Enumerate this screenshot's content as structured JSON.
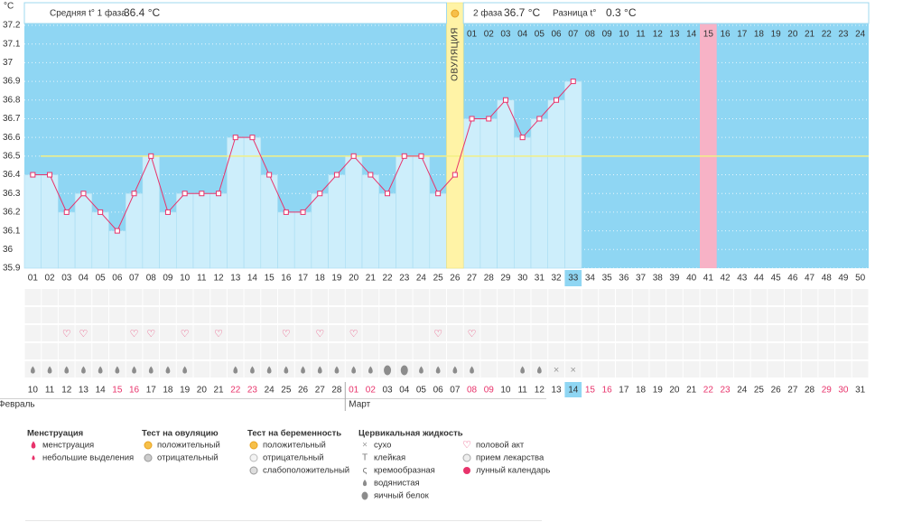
{
  "chart_data": {
    "type": "line",
    "ylabel": "°C",
    "categories": [
      "01",
      "02",
      "03",
      "04",
      "05",
      "06",
      "07",
      "08",
      "09",
      "10",
      "11",
      "12",
      "13",
      "14",
      "15",
      "16",
      "17",
      "18",
      "19",
      "20",
      "21",
      "22",
      "23",
      "24",
      "25",
      "26",
      "27",
      "28",
      "29",
      "30",
      "31",
      "32",
      "33",
      "34",
      "35",
      "36",
      "37",
      "38",
      "39",
      "40",
      "41",
      "42",
      "43",
      "44",
      "45",
      "46",
      "47",
      "48",
      "49",
      "50"
    ],
    "values": [
      36.4,
      36.4,
      36.2,
      36.3,
      36.2,
      36.1,
      36.3,
      36.5,
      36.2,
      36.3,
      36.3,
      36.3,
      36.6,
      36.6,
      36.4,
      36.2,
      36.2,
      36.3,
      36.4,
      36.5,
      36.4,
      36.3,
      36.5,
      36.5,
      36.3,
      36.4,
      36.7,
      36.7,
      36.8,
      36.6,
      36.7,
      36.8,
      36.9,
      null,
      null,
      null,
      null,
      null,
      null,
      null,
      null,
      null,
      null,
      null,
      null,
      null,
      null,
      null,
      null,
      null
    ],
    "color": "#e8336b",
    "bar_color": "#cdeefb",
    "background_color": "#8fd6f3",
    "ylim": [
      35.9,
      37.2
    ],
    "yticks": [
      35.9,
      36,
      36.1,
      36.2,
      36.3,
      36.4,
      36.5,
      36.6,
      36.7,
      36.8,
      36.9,
      37,
      37.1,
      37.2
    ],
    "grid": true,
    "coverline": 36.5,
    "ovulation_day": "26",
    "ovulation_label": "ОВУЛЯЦИЯ",
    "expected_period_day": "41",
    "today": "33",
    "phase2_start": "27",
    "phase2_labels": [
      "01",
      "02",
      "03",
      "04",
      "05",
      "06",
      "07",
      "08",
      "09",
      "10",
      "11",
      "12",
      "13",
      "14",
      "15",
      "16",
      "17",
      "18",
      "19",
      "20",
      "21",
      "22",
      "23",
      "24"
    ],
    "dates": [
      "10",
      "11",
      "12",
      "13",
      "14",
      "15",
      "16",
      "17",
      "18",
      "19",
      "20",
      "21",
      "22",
      "23",
      "24",
      "25",
      "26",
      "27",
      "28",
      "01",
      "02",
      "03",
      "04",
      "05",
      "06",
      "07",
      "08",
      "09",
      "10",
      "11",
      "12",
      "13",
      "14",
      "15",
      "16",
      "17",
      "18",
      "19",
      "20",
      "21",
      "22",
      "23",
      "24",
      "25",
      "26",
      "27",
      "28",
      "29",
      "30",
      "31"
    ],
    "weekend": [
      false,
      false,
      false,
      false,
      false,
      true,
      true,
      false,
      false,
      false,
      false,
      false,
      true,
      true,
      false,
      false,
      false,
      false,
      false,
      true,
      true,
      false,
      false,
      false,
      false,
      false,
      true,
      true,
      false,
      false,
      false,
      false,
      false,
      true,
      true,
      false,
      false,
      false,
      false,
      false,
      true,
      true,
      false,
      false,
      false,
      false,
      false,
      true,
      true,
      false
    ],
    "months": [
      {
        "name": "Февраль",
        "day": "01"
      },
      {
        "name": "Март",
        "day": "20"
      }
    ],
    "intercourse": [
      false,
      false,
      true,
      true,
      false,
      false,
      true,
      true,
      false,
      true,
      false,
      true,
      false,
      false,
      false,
      true,
      false,
      true,
      false,
      true,
      false,
      false,
      false,
      false,
      true,
      false,
      true,
      false,
      false,
      false,
      false,
      false,
      false,
      false,
      false,
      false,
      false,
      false,
      false,
      false,
      false,
      false,
      false,
      false,
      false,
      false,
      false,
      false,
      false,
      false
    ],
    "mucus": [
      "watery",
      "watery",
      "watery",
      "watery",
      "watery",
      "watery",
      "watery",
      "watery",
      "watery",
      "watery",
      null,
      null,
      "watery",
      "watery",
      "watery",
      "watery",
      "watery",
      "watery",
      "watery",
      "watery",
      "watery",
      "egg_white",
      "egg_white",
      "watery",
      "watery",
      "watery",
      "watery",
      null,
      null,
      "watery",
      "watery",
      "dry",
      "dry",
      null,
      null,
      null,
      null,
      null,
      null,
      null,
      null,
      null,
      null,
      null,
      null,
      null,
      null,
      null,
      null,
      null
    ]
  },
  "header": {
    "phase1_label": "Средняя t° 1 фаза",
    "phase1_value": "36.4 °C",
    "phase2_label": "2 фаза",
    "phase2_value": "36.7 °C",
    "diff_label": "Разница t°",
    "diff_value": "0.3 °C"
  },
  "legend": {
    "groups": [
      {
        "title": "Менструация",
        "items": [
          "менструация",
          "небольшие выделения"
        ]
      },
      {
        "title": "Тест на овуляцию",
        "items": [
          "положительный",
          "отрицательный"
        ]
      },
      {
        "title": "Тест на беременность",
        "items": [
          "положительный",
          "отрицательный",
          "слабоположительный"
        ]
      },
      {
        "title": "Цервикальная жидкость",
        "items": [
          "сухо",
          "клейкая",
          "кремообразная",
          "водянистая",
          "яичный белок"
        ]
      },
      {
        "items": [
          "половой акт",
          "прием лекарства",
          "лунный календарь"
        ]
      }
    ]
  }
}
